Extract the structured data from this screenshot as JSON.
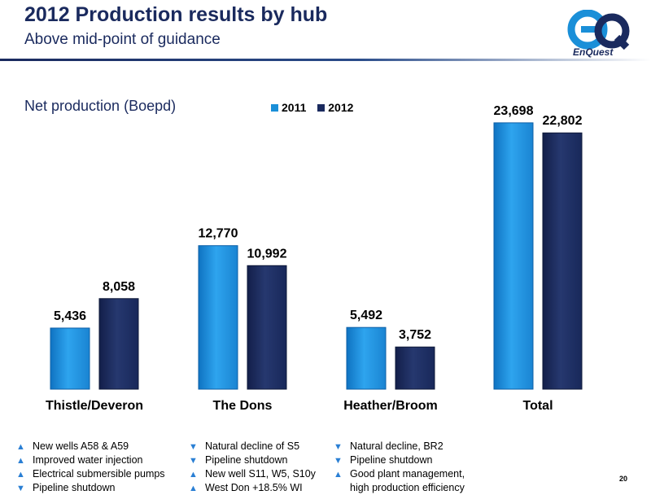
{
  "header": {
    "title": "2012 Production results by hub",
    "subtitle": "Above mid-point of guidance"
  },
  "logo": {
    "mark": "eQ",
    "text": "EnQuest",
    "colors": [
      "#1a8fd8",
      "#1a2a5e"
    ]
  },
  "chart_data": {
    "type": "bar",
    "measure_label": "Net production (Boepd)",
    "categories": [
      "Thistle/Deveron",
      "The Dons",
      "Heather/Broom",
      "Total"
    ],
    "series": [
      {
        "name": "2011",
        "values": [
          5436,
          12770,
          5492,
          23698
        ],
        "labels": [
          "5,436",
          "12,770",
          "5,492",
          "23,698"
        ],
        "color": "#1a8fd8"
      },
      {
        "name": "2012",
        "values": [
          8058,
          10992,
          3752,
          22802
        ],
        "labels": [
          "8,058",
          "10,992",
          "3,752",
          "22,802"
        ],
        "color": "#1a2a5e"
      }
    ],
    "ylim": [
      0,
      25000
    ],
    "legend_position": "top-center",
    "grid": false
  },
  "notes": [
    [
      {
        "dir": "up",
        "text": "New wells A58 & A59"
      },
      {
        "dir": "up",
        "text": "Improved water injection"
      },
      {
        "dir": "up",
        "text": "Electrical submersible pumps"
      },
      {
        "dir": "down",
        "text": "Pipeline shutdown"
      }
    ],
    [
      {
        "dir": "down",
        "text": "Natural decline of S5"
      },
      {
        "dir": "down",
        "text": "Pipeline shutdown"
      },
      {
        "dir": "up",
        "text": "New well S11, W5, S10y"
      },
      {
        "dir": "up",
        "text": "West Don +18.5% WI"
      }
    ],
    [
      {
        "dir": "down",
        "text": "Natural decline, BR2"
      },
      {
        "dir": "down",
        "text": "Pipeline shutdown"
      },
      {
        "dir": "up",
        "text": "Good plant management,",
        "cont": "high production efficiency"
      }
    ]
  ],
  "arrows": {
    "up": "▲",
    "down": "▼"
  },
  "page_number": "20"
}
